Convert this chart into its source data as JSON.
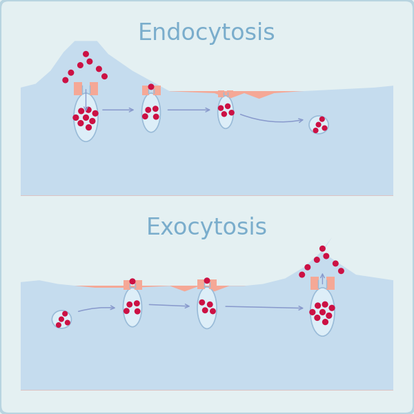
{
  "bg_color": "#e4f0f2",
  "cell_color": "#f5a896",
  "fluid_color": "#c5dcee",
  "ves_fill": "#ddeef8",
  "ves_edge": "#99bbd8",
  "dot_color": "#cc1144",
  "arrow_color": "#8899cc",
  "title1": "Endocytosis",
  "title2": "Exocytosis",
  "title_color": "#7aadcc",
  "title_fontsize": 24,
  "border_color": "#b8d4e0",
  "panel_bg": "#ffffff"
}
